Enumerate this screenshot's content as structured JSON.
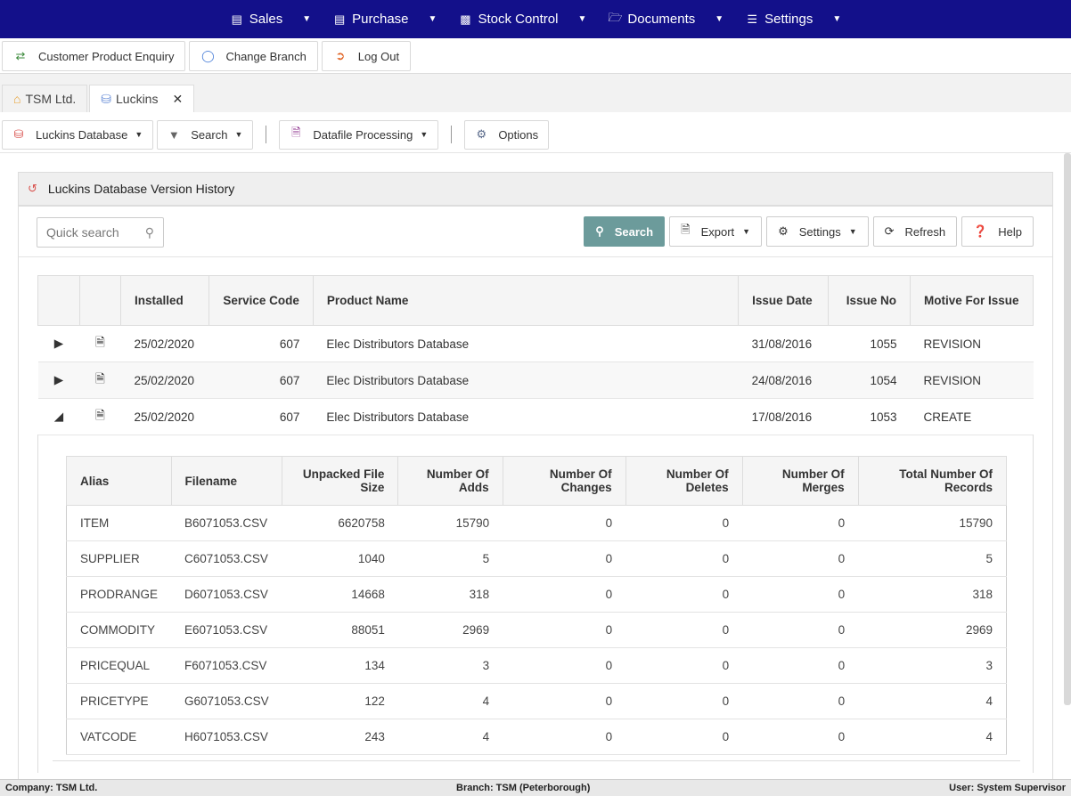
{
  "topnav": [
    {
      "label": "Sales",
      "icon": "id-card-icon"
    },
    {
      "label": "Purchase",
      "icon": "id-card-icon"
    },
    {
      "label": "Stock Control",
      "icon": "boxes-icon"
    },
    {
      "label": "Documents",
      "icon": "folder-icon"
    },
    {
      "label": "Settings",
      "icon": "sliders-icon"
    }
  ],
  "actions": {
    "enquiry": "Customer Product Enquiry",
    "branch": "Change Branch",
    "logout": "Log Out"
  },
  "tabs": {
    "home": "TSM Ltd.",
    "luckins": "Luckins"
  },
  "toolbar": {
    "db": "Luckins Database",
    "search": "Search",
    "datafile": "Datafile Processing",
    "options": "Options"
  },
  "panel": {
    "title": "Luckins Database Version History"
  },
  "grid": {
    "quick_search_placeholder": "Quick search",
    "search": "Search",
    "export": "Export",
    "settings": "Settings",
    "refresh": "Refresh",
    "help": "Help"
  },
  "main_headers": {
    "installed": "Installed",
    "service_code": "Service Code",
    "product_name": "Product Name",
    "issue_date": "Issue Date",
    "issue_no": "Issue No",
    "motive": "Motive For Issue"
  },
  "rows": [
    {
      "installed": "25/02/2020",
      "service_code": "607",
      "product_name": "Elec Distributors Database",
      "issue_date": "31/08/2016",
      "issue_no": "1055",
      "motive": "REVISION"
    },
    {
      "installed": "25/02/2020",
      "service_code": "607",
      "product_name": "Elec Distributors Database",
      "issue_date": "24/08/2016",
      "issue_no": "1054",
      "motive": "REVISION"
    },
    {
      "installed": "25/02/2020",
      "service_code": "607",
      "product_name": "Elec Distributors Database",
      "issue_date": "17/08/2016",
      "issue_no": "1053",
      "motive": "CREATE"
    }
  ],
  "detail_headers": {
    "alias": "Alias",
    "filename": "Filename",
    "unpacked": "Unpacked File Size",
    "adds": "Number Of Adds",
    "changes": "Number Of Changes",
    "deletes": "Number Of Deletes",
    "merges": "Number Of Merges",
    "total": "Total Number Of Records"
  },
  "detail_rows": [
    {
      "alias": "ITEM",
      "filename": "B6071053.CSV",
      "unpacked": "6620758",
      "adds": "15790",
      "changes": "0",
      "deletes": "0",
      "merges": "0",
      "total": "15790"
    },
    {
      "alias": "SUPPLIER",
      "filename": "C6071053.CSV",
      "unpacked": "1040",
      "adds": "5",
      "changes": "0",
      "deletes": "0",
      "merges": "0",
      "total": "5"
    },
    {
      "alias": "PRODRANGE",
      "filename": "D6071053.CSV",
      "unpacked": "14668",
      "adds": "318",
      "changes": "0",
      "deletes": "0",
      "merges": "0",
      "total": "318"
    },
    {
      "alias": "COMMODITY",
      "filename": "E6071053.CSV",
      "unpacked": "88051",
      "adds": "2969",
      "changes": "0",
      "deletes": "0",
      "merges": "0",
      "total": "2969"
    },
    {
      "alias": "PRICEQUAL",
      "filename": "F6071053.CSV",
      "unpacked": "134",
      "adds": "3",
      "changes": "0",
      "deletes": "0",
      "merges": "0",
      "total": "3"
    },
    {
      "alias": "PRICETYPE",
      "filename": "G6071053.CSV",
      "unpacked": "122",
      "adds": "4",
      "changes": "0",
      "deletes": "0",
      "merges": "0",
      "total": "4"
    },
    {
      "alias": "VATCODE",
      "filename": "H6071053.CSV",
      "unpacked": "243",
      "adds": "4",
      "changes": "0",
      "deletes": "0",
      "merges": "0",
      "total": "4"
    }
  ],
  "status": {
    "company": "Company: TSM Ltd.",
    "branch": "Branch: TSM (Peterborough)",
    "user": "User: System Supervisor"
  },
  "colors": {
    "nav_bg": "#13108a",
    "primary_btn": "#6c9b9b",
    "db_icon": "#d9534f",
    "doc_icon": "#3a9a3a"
  }
}
